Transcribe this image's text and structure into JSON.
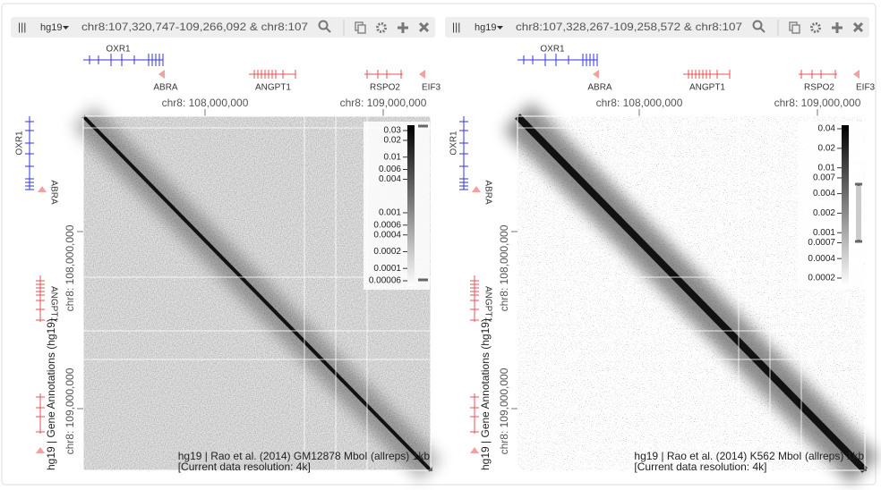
{
  "views": [
    {
      "assembly": "hg19",
      "location": "chr8:107,320,747-109,266,092 & chr8:107",
      "top_genes": [
        "OXR1",
        "ABRA",
        "ANGPT1",
        "RSPO2",
        "EIF3"
      ],
      "top_axis_ticks": [
        "chr8: 108,000,000",
        "chr8: 109,000,000"
      ],
      "left_genes": [
        "OXR1",
        "ABRA",
        "ANGPT1"
      ],
      "left_axis_ticks": [
        "chr8: 108,000,000",
        "chr8: 109,000,000"
      ],
      "left_track_label": "hg19 | Gene Annotations (hg19)",
      "colorbar_ticks": [
        "0.03",
        "0.02",
        "0.01",
        "0.006",
        "0.004",
        "0.001",
        "0.0006",
        "0.0004",
        "0.0002",
        "0.0001",
        "0.00006"
      ],
      "heatmap_label": [
        "hg19 | Rao et al. (2014) GM12878 MboI (allreps) 1kb",
        "[Current data resolution: 4k]"
      ]
    },
    {
      "assembly": "hg19",
      "location": "chr8:107,328,267-109,258,572 & chr8:107",
      "top_genes": [
        "OXR1",
        "ABRA",
        "ANGPT1",
        "RSPO2",
        "EIF3"
      ],
      "top_axis_ticks": [
        "chr8: 108,000,000",
        "chr8: 109,000,000"
      ],
      "left_genes": [
        "OXR1",
        "ABRA",
        "ANGPT1"
      ],
      "left_axis_ticks": [
        "chr8: 108,000,000",
        "chr8: 109,000,000"
      ],
      "left_track_label": "hg19 | Gene Annotations (hg19)",
      "colorbar_ticks": [
        "0.04",
        "0.02",
        "0.01",
        "0.007",
        "0.004",
        "0.002",
        "0.001",
        "0.0007",
        "0.0004",
        "0.0002"
      ],
      "heatmap_label": [
        "hg19 | Rao et al. (2014) K562 MboI (allreps) 1kb",
        "[Current data resolution: 4k]"
      ]
    }
  ]
}
